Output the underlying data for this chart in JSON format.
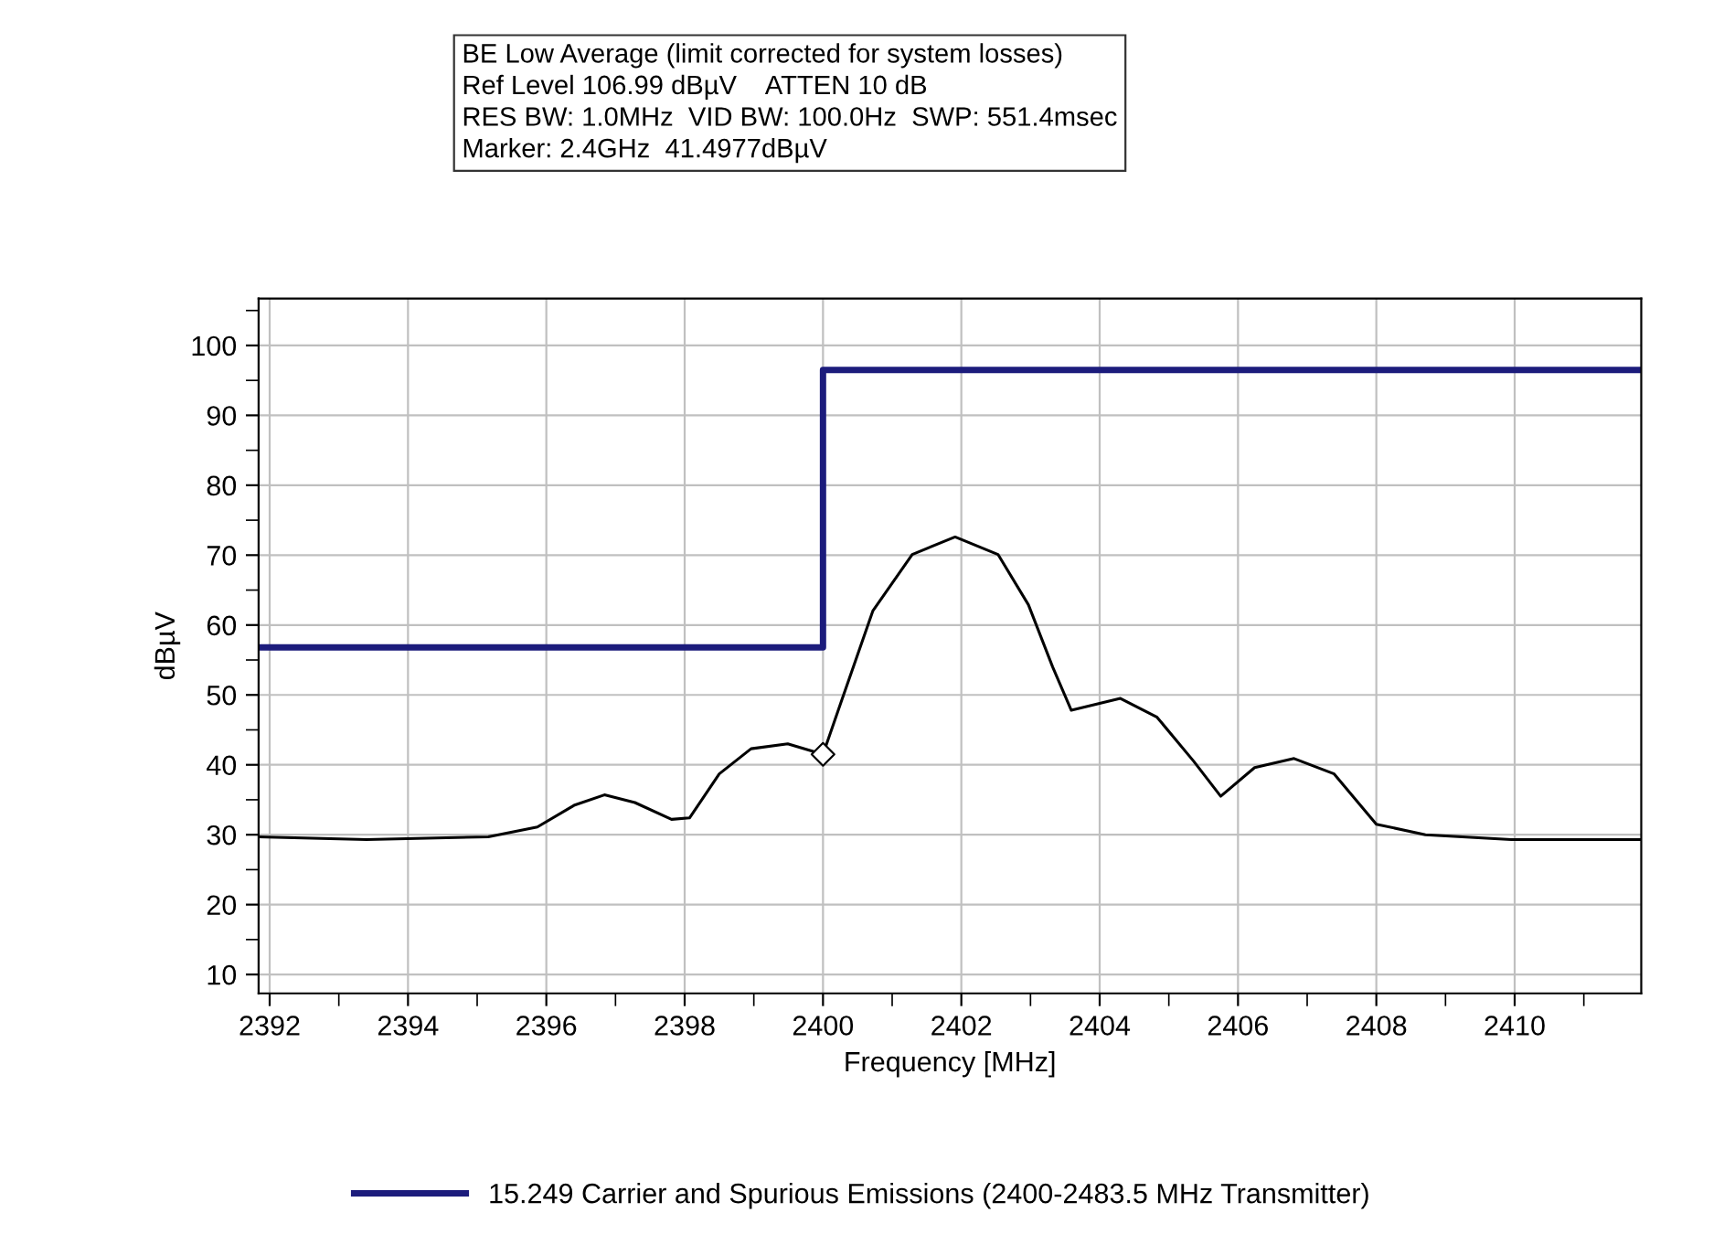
{
  "chart_data": {
    "type": "line",
    "xlabel": "Frequency [MHz]",
    "ylabel": "dBµV",
    "annotations": [
      "BE Low Average (limit corrected for system losses)",
      "Ref Level 106.99 dBµV    ATTEN 10 dB",
      "RES BW: 1.0MHz  VID BW: 100.0Hz  SWP: 551.4msec",
      "Marker: 2.4GHz  41.4977dBµV"
    ],
    "series": [
      {
        "name": "15.249 Carrier and Spurious Emissions (2400-2483.5 MHz Transmitter)",
        "type": "step",
        "color": "#1c1c7c",
        "x": [
          2391.84,
          2400,
          2411.83
        ],
        "values": [
          56.8,
          96.5,
          96.5
        ]
      },
      {
        "color": "#000000",
        "x": [
          2391.84,
          2393.4,
          2395.16,
          2395.87,
          2396.4,
          2396.84,
          2397.28,
          2397.81,
          2398.07,
          2398.5,
          2398.96,
          2399.49,
          2400.0,
          2400.28,
          2400.72,
          2401.29,
          2401.91,
          2402.53,
          2402.97,
          2403.32,
          2403.59,
          2404.3,
          2404.83,
          2405.36,
          2405.75,
          2406.24,
          2406.81,
          2407.39,
          2408.0,
          2408.71,
          2409.95,
          2411.83
        ],
        "values": [
          29.7,
          29.3,
          29.7,
          31.1,
          34.2,
          35.7,
          34.6,
          32.2,
          32.4,
          38.7,
          42.3,
          43.0,
          41.5,
          49.5,
          62.0,
          70.1,
          72.6,
          70.1,
          62.9,
          54.0,
          47.8,
          49.5,
          46.8,
          40.5,
          35.5,
          39.6,
          40.9,
          38.7,
          31.5,
          30.0,
          29.3,
          29.3
        ]
      },
      {
        "type": "scatter",
        "color": "#000000",
        "marker": "diamond",
        "x": [
          2400
        ],
        "values": [
          41.5
        ]
      }
    ],
    "xlim": [
      2391.84,
      2411.83
    ],
    "ylim": [
      7.3,
      106.7
    ],
    "xticks": [
      2392,
      2394,
      2396,
      2398,
      2400,
      2402,
      2404,
      2406,
      2408,
      2410
    ],
    "yticks": [
      10,
      20,
      30,
      40,
      50,
      60,
      70,
      80,
      90,
      100
    ],
    "grid": true,
    "legend": "bottom"
  }
}
